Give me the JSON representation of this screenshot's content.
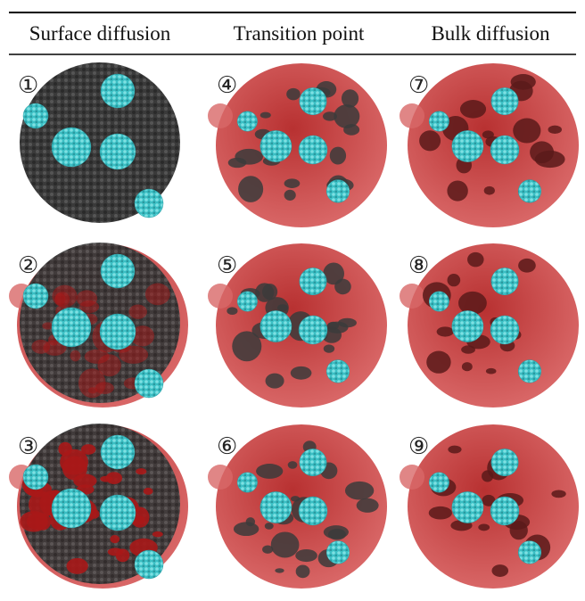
{
  "header": {
    "columns": [
      "Surface diffusion",
      "Transition point",
      "Bulk diffusion"
    ]
  },
  "panels": [
    {
      "label": "①"
    },
    {
      "label": "②"
    },
    {
      "label": "③"
    },
    {
      "label": "④"
    },
    {
      "label": "⑤"
    },
    {
      "label": "⑥"
    },
    {
      "label": "⑦"
    },
    {
      "label": "⑧"
    },
    {
      "label": "⑨"
    }
  ]
}
